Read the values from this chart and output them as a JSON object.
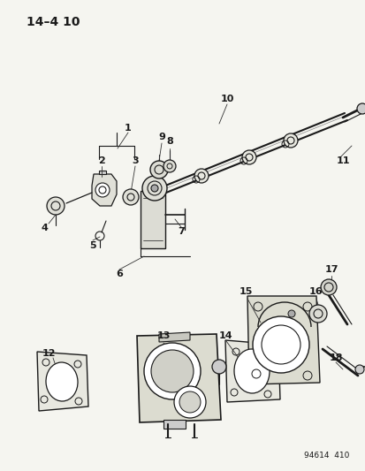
{
  "title": "14–4 10",
  "watermark": "94614  410",
  "bg_color": "#f5f5f0",
  "fg_color": "#1a1a1a",
  "figsize": [
    4.14,
    5.33
  ],
  "dpi": 100
}
